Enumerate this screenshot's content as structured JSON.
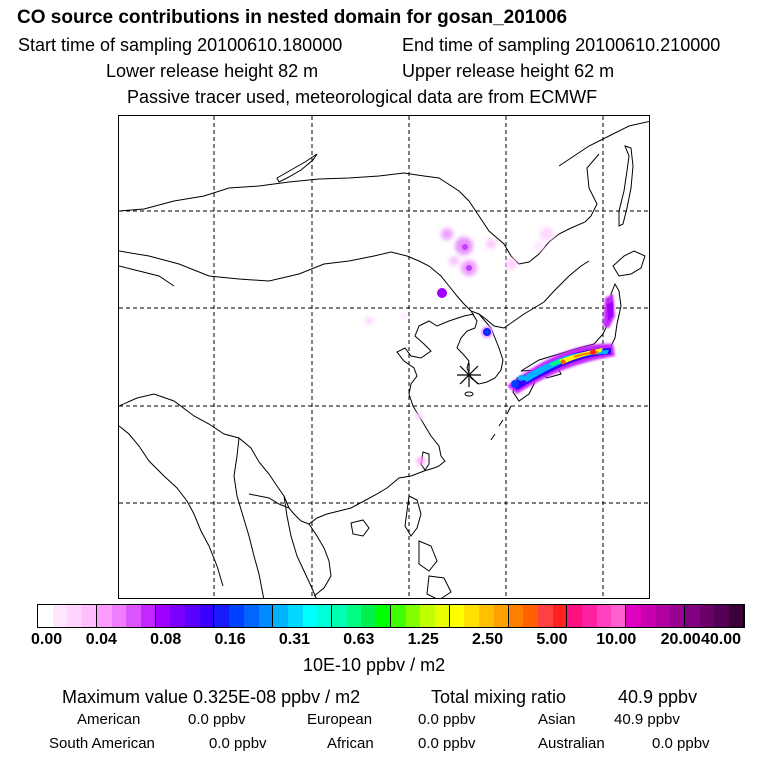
{
  "header": {
    "title": "CO  source contributions in nested domain for gosan_201006",
    "start_time": "Start time of sampling 20100610.180000",
    "end_time": "End time of sampling 20100610.210000",
    "lower_height": "Lower release height   82 m",
    "upper_height": "Upper release height   62 m",
    "tracer_note": "Passive tracer used, meteorological data are from ECMWF"
  },
  "map": {
    "receptor": "gosan",
    "receptor_marker": "asterisk"
  },
  "colorbar": {
    "unit": "10E-10 ppbv / m2",
    "tick_labels": [
      "0.00",
      "0.04",
      "0.08",
      "0.16",
      "0.31",
      "0.63",
      "1.25",
      "2.50",
      "5.00",
      "10.00",
      "20.00",
      "40.00"
    ],
    "colors": [
      "#ffffff",
      "#ffe8ff",
      "#ffd4ff",
      "#ffbfff",
      "#ff9cff",
      "#f07cff",
      "#dd55ff",
      "#c426ff",
      "#a000ff",
      "#7b00ff",
      "#5a00ff",
      "#3800ff",
      "#1a1aff",
      "#0040ff",
      "#0066ff",
      "#008cff",
      "#00b4ff",
      "#00d8ff",
      "#00ffff",
      "#00ffd8",
      "#00ffb0",
      "#00ff80",
      "#00f050",
      "#00ff00",
      "#40ff00",
      "#80ff00",
      "#c0ff00",
      "#e8ff00",
      "#ffff00",
      "#ffe000",
      "#ffc000",
      "#ffa000",
      "#ff8000",
      "#ff6000",
      "#ff4040",
      "#ff2020",
      "#ff1080",
      "#ff20a0",
      "#ff40c0",
      "#ff60d0",
      "#e000c0",
      "#c800b0",
      "#b000a0",
      "#980090",
      "#800080",
      "#6a006a",
      "#540054",
      "#3a003a"
    ]
  },
  "stats": {
    "max_value": "Maximum value  0.325E-08 ppbv / m2",
    "total_label": "Total mixing ratio",
    "total_value": "40.9 ppbv",
    "regions": [
      {
        "name": "American",
        "value": "0.0 ppbv"
      },
      {
        "name": "European",
        "value": "0.0 ppbv"
      },
      {
        "name": "Asian",
        "value": "40.9 ppbv"
      },
      {
        "name": "South American",
        "value": "0.0 ppbv"
      },
      {
        "name": "African",
        "value": "0.0 ppbv"
      },
      {
        "name": "Australian",
        "value": "0.0 ppbv"
      }
    ]
  }
}
